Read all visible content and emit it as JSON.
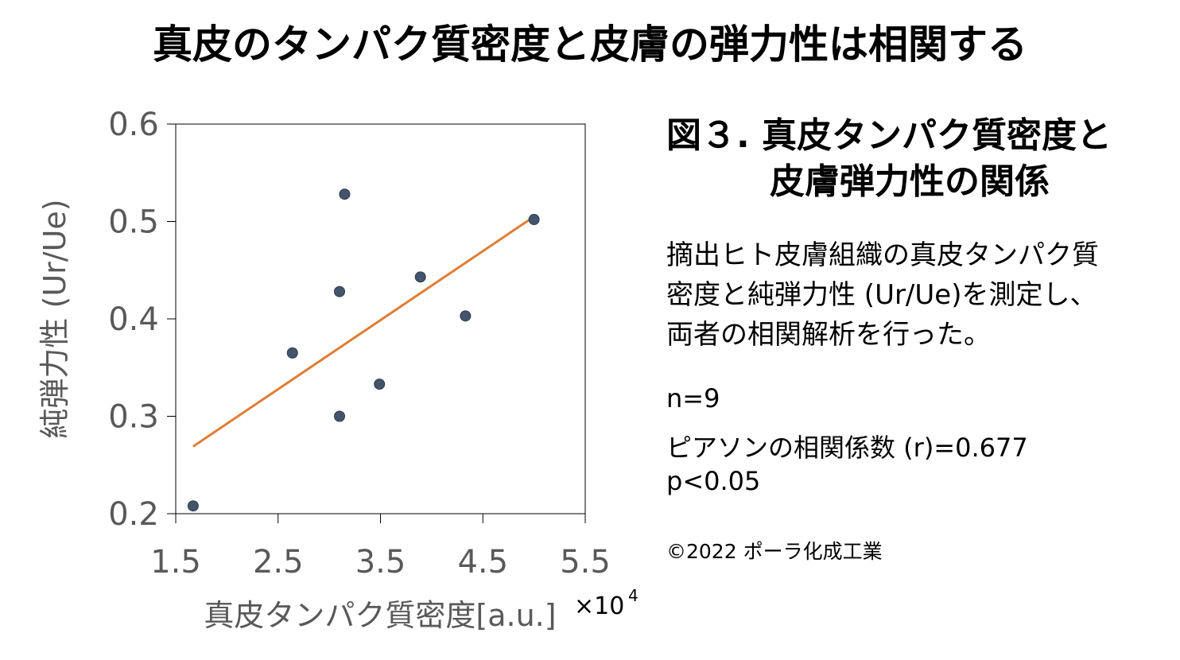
{
  "header": {
    "title": "真皮のタンパク質密度と皮膚の弾力性は相関する"
  },
  "caption": {
    "figure_line1": "図３. 真皮タンパク質密度と",
    "figure_line2": "皮膚弾力性の関係",
    "description_lines": [
      "摘出ヒト皮膚組織の真皮タンパク質",
      "密度と純弾力性 (Ur/Ue)を測定し、",
      "両者の相関解析を行った。"
    ],
    "n": "n=9",
    "pearson": "ピアソンの相関係数 (r)=0.677",
    "p_value": "p<0.05",
    "copyright": "©2022 ポーラ化成工業"
  },
  "chart_data": {
    "type": "scatter",
    "title": "",
    "xlabel": "真皮タンパク質密度[a.u.]",
    "x_multiplier": "×10",
    "x_multiplier_exp": "4",
    "ylabel": "純弾力性 (Ur/Ue)",
    "xlim": [
      1.5,
      5.5
    ],
    "ylim": [
      0.2,
      0.6
    ],
    "xticks": [
      "1.5",
      "2.5",
      "3.5",
      "4.5",
      "5.5"
    ],
    "xtick_values": [
      1.5,
      2.5,
      3.5,
      4.5,
      5.5
    ],
    "yticks": [
      "0.2",
      "0.3",
      "0.4",
      "0.5",
      "0.6"
    ],
    "ytick_values": [
      0.2,
      0.3,
      0.4,
      0.5,
      0.6
    ],
    "grid": false,
    "points": [
      {
        "x": 1.67,
        "y": 0.208
      },
      {
        "x": 2.64,
        "y": 0.365
      },
      {
        "x": 3.1,
        "y": 0.428
      },
      {
        "x": 3.1,
        "y": 0.3
      },
      {
        "x": 3.15,
        "y": 0.528
      },
      {
        "x": 3.49,
        "y": 0.333
      },
      {
        "x": 3.89,
        "y": 0.443
      },
      {
        "x": 4.33,
        "y": 0.403
      },
      {
        "x": 5.0,
        "y": 0.502
      }
    ],
    "trendline": {
      "x": [
        1.67,
        5.0
      ],
      "y": [
        0.269,
        0.505
      ]
    },
    "colors": {
      "points": "#44546a",
      "trendline": "#e07d35",
      "axis_text": "#595959"
    }
  }
}
